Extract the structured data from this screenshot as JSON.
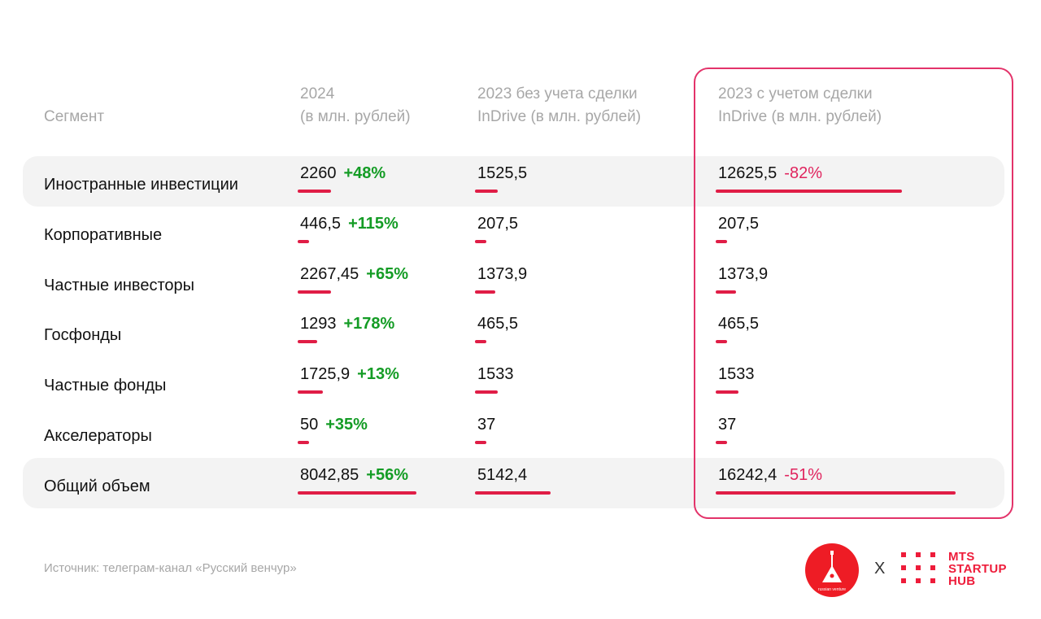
{
  "colors": {
    "bar": "#e01d46",
    "positive": "#149c25",
    "negative": "#e0245e",
    "highlight_border": "#e3336a",
    "band": "#f3f3f3"
  },
  "headers": {
    "segment": "Сегмент",
    "col1": [
      "2024",
      "(в млн. рублей)"
    ],
    "col2": [
      "2023 без учета сделки",
      "InDrive (в млн. рублей)"
    ],
    "col3": [
      "2023 с учетом сделки",
      "InDrive (в млн. рублей)"
    ]
  },
  "chart_data": {
    "type": "table",
    "columns": [
      "Сегмент",
      "2024 (в млн. рублей)",
      "2023 без учета сделки InDrive (в млн. рублей)",
      "2023 с учетом сделки InDrive (в млн. рублей)"
    ],
    "rows": [
      {
        "segment": "Иностранные инвестиции",
        "v2024": "2260",
        "chg2024": "+48%",
        "v2023": "1525,5",
        "v2023i": "12625,5",
        "chg2023i": "-82%",
        "n2024": 2260,
        "n2023": 1525.5,
        "n2023i": 12625.5,
        "band": true
      },
      {
        "segment": "Корпоративные",
        "v2024": "446,5",
        "chg2024": "+115%",
        "v2023": "207,5",
        "v2023i": "207,5",
        "chg2023i": "",
        "n2024": 446.5,
        "n2023": 207.5,
        "n2023i": 207.5,
        "band": false
      },
      {
        "segment": "Частные инвесторы",
        "v2024": "2267,45",
        "chg2024": "+65%",
        "v2023": "1373,9",
        "v2023i": "1373,9",
        "chg2023i": "",
        "n2024": 2267.45,
        "n2023": 1373.9,
        "n2023i": 1373.9,
        "band": false
      },
      {
        "segment": "Госфонды",
        "v2024": "1293",
        "chg2024": "+178%",
        "v2023": "465,5",
        "v2023i": "465,5",
        "chg2023i": "",
        "n2024": 1293,
        "n2023": 465.5,
        "n2023i": 465.5,
        "band": false
      },
      {
        "segment": "Частные фонды",
        "v2024": "1725,9",
        "chg2024": "+13%",
        "v2023": "1533",
        "v2023i": "1533",
        "chg2023i": "",
        "n2024": 1725.9,
        "n2023": 1533,
        "n2023i": 1533,
        "band": false
      },
      {
        "segment": "Акселераторы",
        "v2024": "50",
        "chg2024": "+35%",
        "v2023": "37",
        "v2023i": "37",
        "chg2023i": "",
        "n2024": 50,
        "n2023": 37,
        "n2023i": 37,
        "band": false
      },
      {
        "segment": "Общий объем",
        "v2024": "8042,85",
        "chg2024": "+56%",
        "v2023": "5142,4",
        "v2023i": "16242,4",
        "chg2023i": "-51%",
        "n2024": 8042.85,
        "n2023": 5142.4,
        "n2023i": 16242.4,
        "band": true
      }
    ]
  },
  "source": "Источник: телеграм-канал «Русский венчур»",
  "logos": {
    "left_icon": "russian-venture-balalaika-logo",
    "left_caption": "russian venture",
    "separator": "X",
    "right_icon": "mts-startup-hub-logo",
    "right_lines": [
      "MTS",
      "STARTUP",
      "HUB"
    ]
  }
}
